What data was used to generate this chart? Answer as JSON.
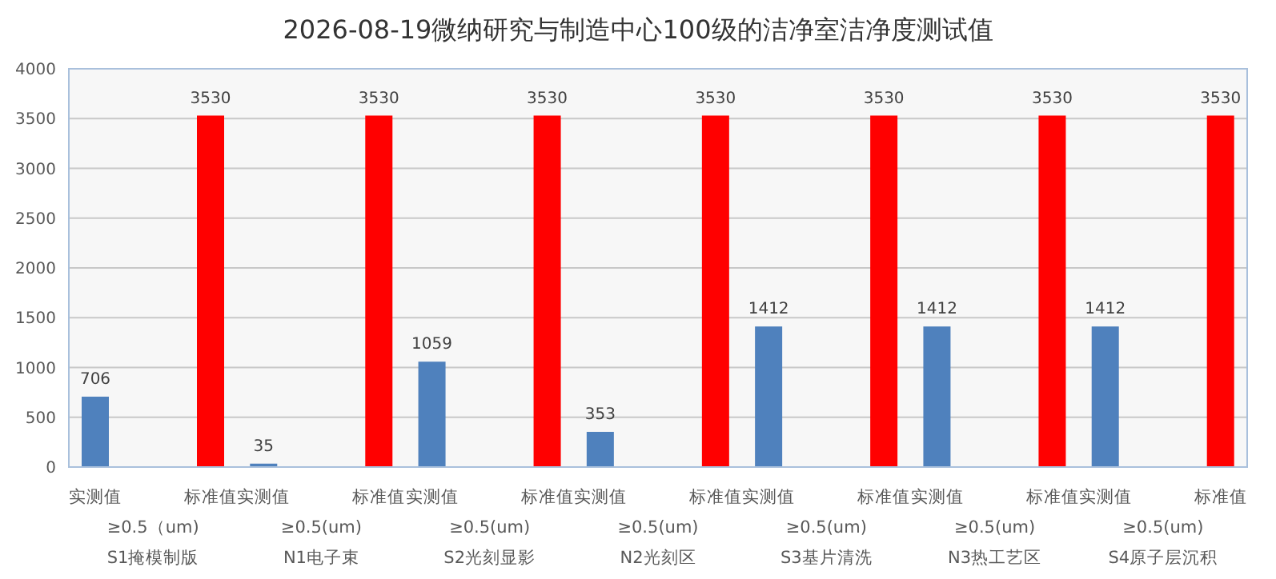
{
  "chart_data": {
    "type": "bar",
    "title": "2026-08-19微纳研究与制造中心100级的洁净室洁净度测试值",
    "categories": [
      "≥0.5（um)\nS1掩模制版",
      "≥0.5(um)\nN1电子束",
      "≥0.5(um)\nS2光刻显影",
      "≥0.5(um)\nN2光刻区",
      "≥0.5(um)\nS3基片清洗",
      "≥0.5(um)\nN3热工艺区",
      "≥0.5(um)\nS4原子层沉积"
    ],
    "series": [
      {
        "name": "实测值",
        "color": "#4f81bd",
        "values": [
          706,
          35,
          1059,
          353,
          1412,
          1412,
          1412
        ]
      },
      {
        "name": "标准值",
        "color": "#ff0000",
        "values": [
          3530,
          3530,
          3530,
          3530,
          3530,
          3530,
          3530
        ]
      }
    ],
    "ylim": [
      0,
      4000
    ],
    "yticks": [
      0,
      500,
      1000,
      1500,
      2000,
      2500,
      3000,
      3500,
      4000
    ],
    "grid": "y",
    "data_labels": true,
    "legend": false
  }
}
